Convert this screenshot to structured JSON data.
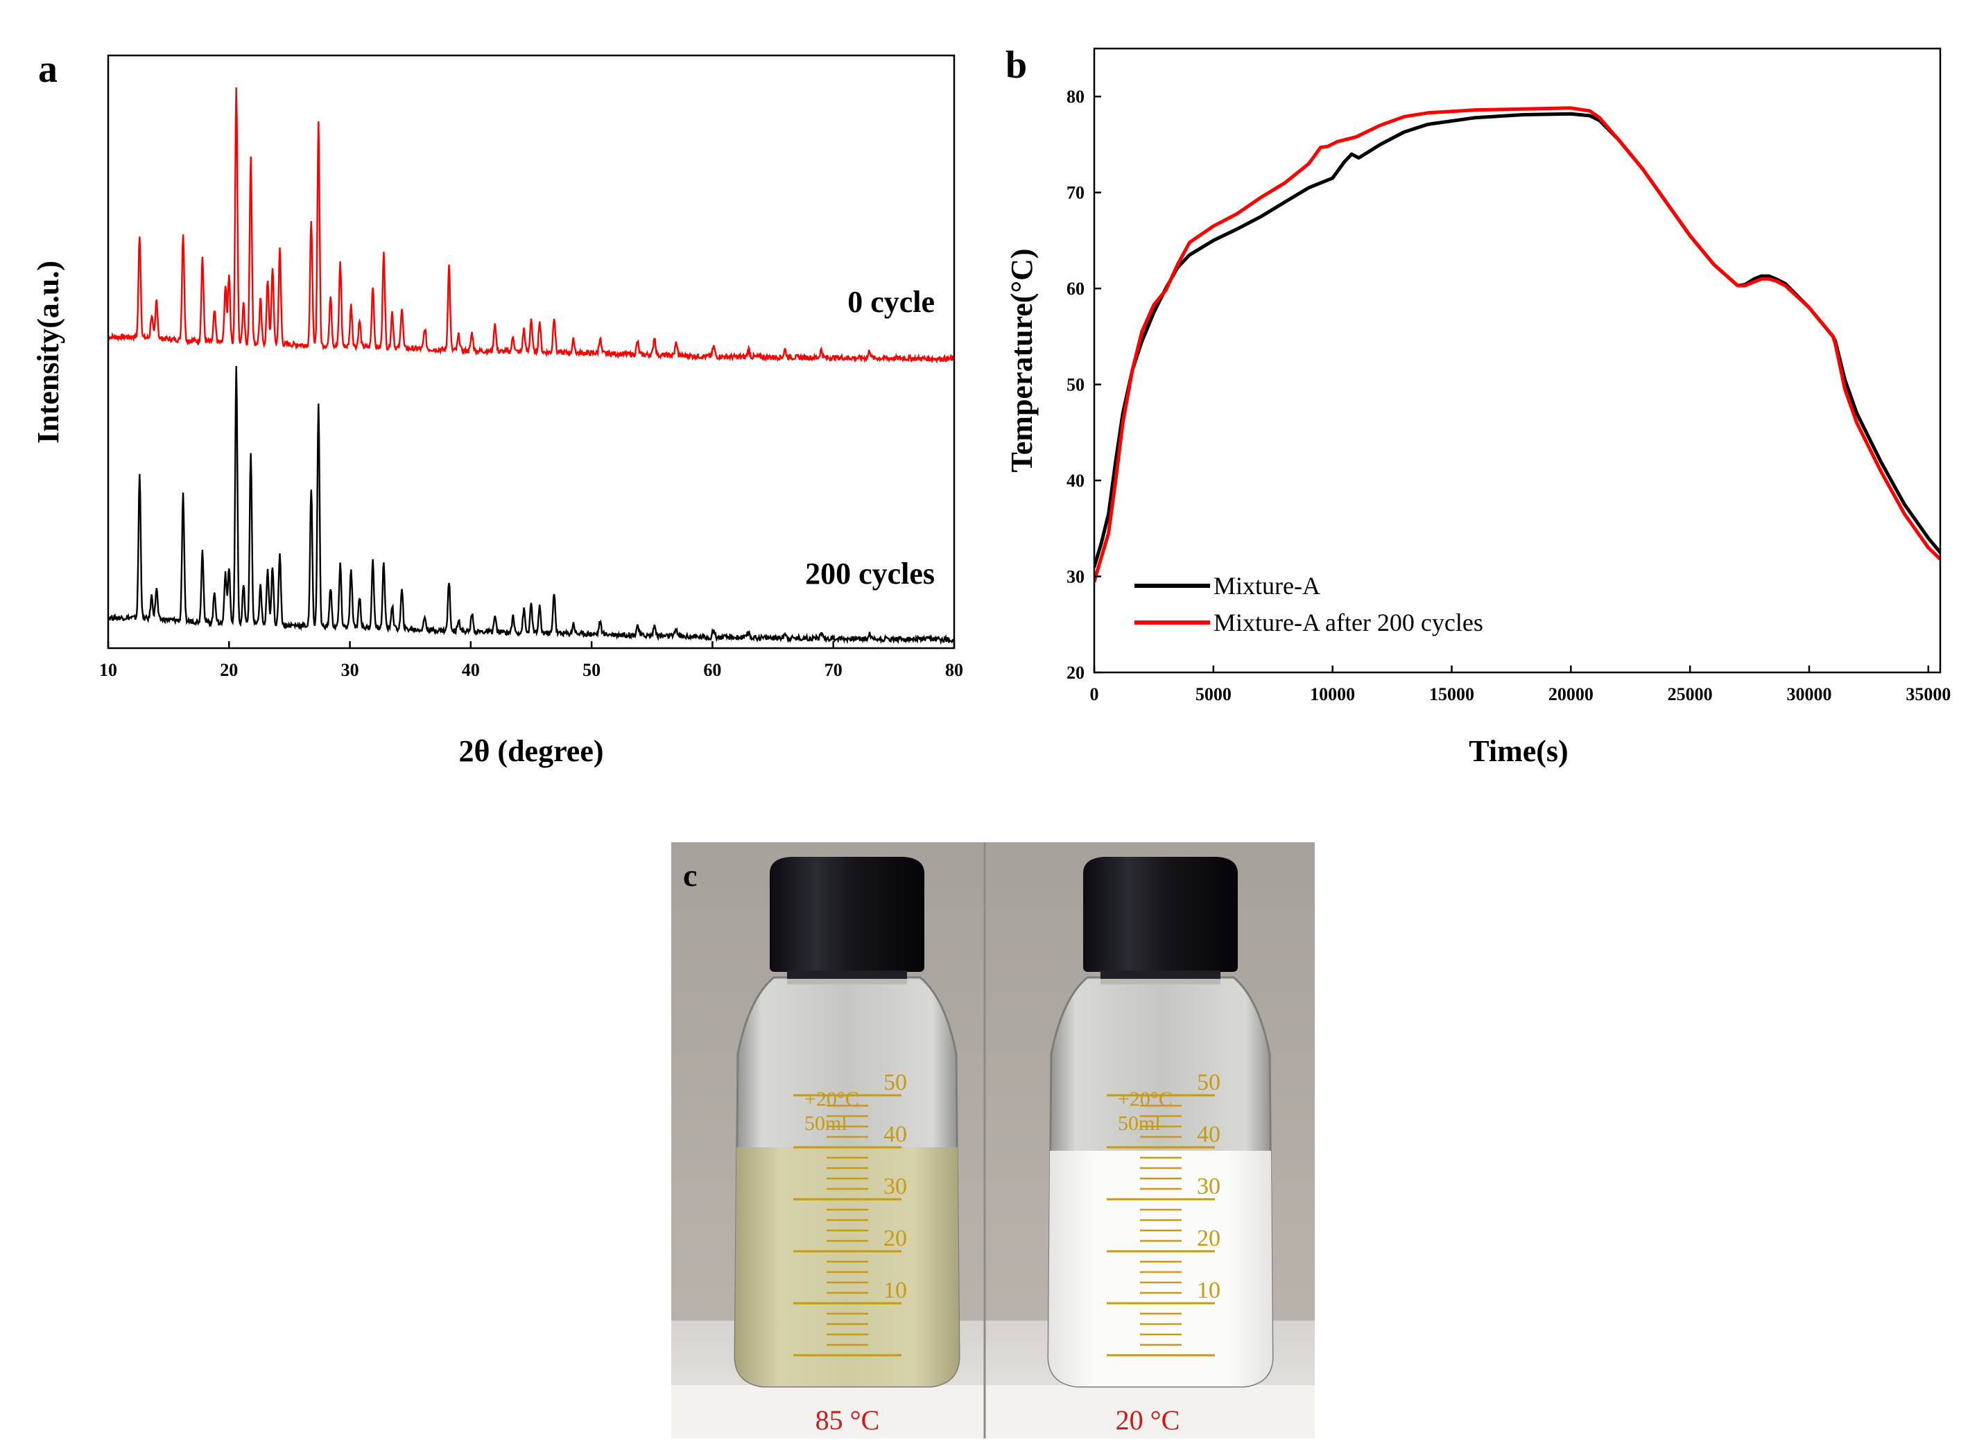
{
  "chart_data": [
    {
      "panel": "a",
      "type": "line",
      "title": "",
      "xlabel": "2θ (degree)",
      "ylabel": "Intensity(a.u.)",
      "xlim": [
        10,
        80
      ],
      "xticks": [
        10,
        20,
        30,
        40,
        50,
        60,
        70,
        80
      ],
      "ylim": [
        0,
        1
      ],
      "grid": false,
      "series": [
        {
          "name": "0 cycle",
          "color": "#ff0000",
          "baseline": [
            [
              10,
              0.0
            ],
            [
              12,
              0.0
            ],
            [
              20,
              -0.05
            ],
            [
              30,
              -0.08
            ],
            [
              40,
              -0.12
            ],
            [
              50,
              -0.14
            ],
            [
              60,
              -0.17
            ],
            [
              70,
              -0.18
            ],
            [
              80,
              -0.19
            ]
          ],
          "peaks": [
            [
              12.6,
              0.4
            ],
            [
              13.6,
              0.09
            ],
            [
              14.0,
              0.15
            ],
            [
              16.2,
              0.42
            ],
            [
              17.8,
              0.33
            ],
            [
              18.8,
              0.12
            ],
            [
              19.7,
              0.22
            ],
            [
              20.0,
              0.27
            ],
            [
              20.6,
              1.0
            ],
            [
              21.2,
              0.16
            ],
            [
              21.8,
              0.73
            ],
            [
              22.6,
              0.17
            ],
            [
              23.2,
              0.25
            ],
            [
              23.6,
              0.3
            ],
            [
              24.2,
              0.37
            ],
            [
              26.8,
              0.49
            ],
            [
              27.4,
              0.87
            ],
            [
              28.4,
              0.2
            ],
            [
              29.2,
              0.33
            ],
            [
              30.1,
              0.16
            ],
            [
              30.8,
              0.1
            ],
            [
              31.9,
              0.24
            ],
            [
              32.8,
              0.38
            ],
            [
              33.5,
              0.14
            ],
            [
              34.3,
              0.16
            ],
            [
              36.2,
              0.08
            ],
            [
              38.2,
              0.33
            ],
            [
              39.0,
              0.06
            ],
            [
              40.1,
              0.07
            ],
            [
              42.0,
              0.11
            ],
            [
              43.5,
              0.06
            ],
            [
              44.4,
              0.09
            ],
            [
              45.0,
              0.13
            ],
            [
              45.7,
              0.12
            ],
            [
              46.9,
              0.14
            ],
            [
              48.5,
              0.05
            ],
            [
              50.7,
              0.06
            ],
            [
              53.8,
              0.05
            ],
            [
              55.2,
              0.07
            ],
            [
              57.0,
              0.05
            ],
            [
              60.1,
              0.04
            ],
            [
              63.0,
              0.03
            ],
            [
              66.0,
              0.03
            ],
            [
              69.0,
              0.03
            ],
            [
              73.0,
              0.03
            ]
          ]
        },
        {
          "name": "200 cycles",
          "color": "#000000",
          "baseline": [
            [
              10,
              0.0
            ],
            [
              12,
              0.0
            ],
            [
              20,
              -0.05
            ],
            [
              30,
              -0.08
            ],
            [
              40,
              -0.12
            ],
            [
              50,
              -0.14
            ],
            [
              60,
              -0.17
            ],
            [
              70,
              -0.18
            ],
            [
              80,
              -0.19
            ]
          ],
          "peaks": [
            [
              12.6,
              0.56
            ],
            [
              13.6,
              0.09
            ],
            [
              14.0,
              0.12
            ],
            [
              16.2,
              0.49
            ],
            [
              17.8,
              0.28
            ],
            [
              18.8,
              0.12
            ],
            [
              19.7,
              0.2
            ],
            [
              20.0,
              0.22
            ],
            [
              20.6,
              1.0
            ],
            [
              21.2,
              0.15
            ],
            [
              21.8,
              0.67
            ],
            [
              22.6,
              0.15
            ],
            [
              23.2,
              0.21
            ],
            [
              23.6,
              0.23
            ],
            [
              24.2,
              0.28
            ],
            [
              26.8,
              0.54
            ],
            [
              27.4,
              0.87
            ],
            [
              28.4,
              0.15
            ],
            [
              29.2,
              0.24
            ],
            [
              30.1,
              0.22
            ],
            [
              30.8,
              0.12
            ],
            [
              31.9,
              0.26
            ],
            [
              32.8,
              0.26
            ],
            [
              33.5,
              0.09
            ],
            [
              34.3,
              0.15
            ],
            [
              36.2,
              0.05
            ],
            [
              38.2,
              0.19
            ],
            [
              39.0,
              0.05
            ],
            [
              40.1,
              0.07
            ],
            [
              42.0,
              0.06
            ],
            [
              43.5,
              0.06
            ],
            [
              44.4,
              0.09
            ],
            [
              45.0,
              0.11
            ],
            [
              45.7,
              0.1
            ],
            [
              46.9,
              0.16
            ],
            [
              48.5,
              0.04
            ],
            [
              50.7,
              0.05
            ],
            [
              53.8,
              0.04
            ],
            [
              55.2,
              0.04
            ],
            [
              57.0,
              0.03
            ],
            [
              60.1,
              0.03
            ],
            [
              63.0,
              0.02
            ],
            [
              66.0,
              0.02
            ],
            [
              69.0,
              0.02
            ],
            [
              73.0,
              0.02
            ]
          ]
        }
      ],
      "annotations": [
        "0 cycle",
        "200 cycles"
      ]
    },
    {
      "panel": "b",
      "type": "line",
      "title": "",
      "xlabel": "Time(s)",
      "ylabel": "Temperature(°C)",
      "xlim": [
        0,
        35500
      ],
      "ylim": [
        20,
        85
      ],
      "xticks": [
        0,
        5000,
        10000,
        15000,
        20000,
        25000,
        30000,
        35000
      ],
      "yticks": [
        20,
        30,
        40,
        50,
        60,
        70,
        80
      ],
      "grid": false,
      "legend_position": "bottom-left",
      "series": [
        {
          "name": "Mixture-A",
          "color": "#000000",
          "x": [
            0,
            300,
            600,
            900,
            1200,
            1600,
            2000,
            2500,
            3000,
            3500,
            4000,
            5000,
            6000,
            7000,
            8000,
            9000,
            10000,
            10500,
            10800,
            11100,
            12000,
            13000,
            14000,
            16000,
            18000,
            20000,
            20800,
            21200,
            22000,
            23000,
            24000,
            25000,
            26000,
            27000,
            27300,
            27700,
            28000,
            28300,
            28600,
            29000,
            30000,
            31000,
            31100,
            31500,
            32000,
            33000,
            34000,
            35000,
            35500
          ],
          "y": [
            31,
            33.5,
            36.5,
            42,
            47,
            51.5,
            54.5,
            57.5,
            60,
            62.2,
            63.5,
            65,
            66.2,
            67.5,
            69,
            70.5,
            71.5,
            73.2,
            74,
            73.6,
            75,
            76.3,
            77.1,
            77.8,
            78.1,
            78.2,
            78.0,
            77.5,
            75.5,
            72.5,
            69,
            65.5,
            62.5,
            60.3,
            60.4,
            61,
            61.3,
            61.3,
            61,
            60.5,
            58,
            55,
            54.5,
            50.5,
            47,
            42,
            37.5,
            34,
            32.5
          ]
        },
        {
          "name": "Mixture-A after 200 cycles",
          "color": "#ff0000",
          "x": [
            0,
            300,
            600,
            900,
            1200,
            1600,
            2000,
            2500,
            3000,
            3500,
            4000,
            5000,
            6000,
            7000,
            8000,
            9000,
            9500,
            9800,
            10200,
            11000,
            12000,
            13000,
            14000,
            16000,
            18000,
            20000,
            20800,
            21200,
            22000,
            23000,
            24000,
            25000,
            26000,
            27000,
            27300,
            27700,
            28000,
            28300,
            28600,
            29000,
            30000,
            31000,
            31100,
            31500,
            32000,
            33000,
            34000,
            35000,
            35500
          ],
          "y": [
            29.5,
            32,
            34.5,
            40,
            46,
            51.5,
            55.5,
            58.3,
            59.8,
            62.5,
            64.8,
            66.5,
            67.8,
            69.5,
            71,
            73,
            74.7,
            74.8,
            75.3,
            75.8,
            77,
            77.9,
            78.3,
            78.6,
            78.7,
            78.8,
            78.5,
            77.8,
            75.5,
            72.5,
            69,
            65.5,
            62.5,
            60.3,
            60.3,
            60.7,
            61,
            61,
            60.8,
            60.3,
            58,
            55,
            54.2,
            49.5,
            46,
            41,
            36.5,
            33,
            31.8
          ]
        }
      ]
    }
  ],
  "panels": {
    "a": {
      "letter": "a"
    },
    "b": {
      "letter": "b"
    },
    "c": {
      "letter": "c",
      "captions": [
        "85 °C",
        "20 °C"
      ],
      "bottle_marks": [
        "50",
        "40",
        "30",
        "20",
        "10"
      ],
      "bottle_label_lines": [
        "+20°C",
        "50ml"
      ]
    }
  }
}
